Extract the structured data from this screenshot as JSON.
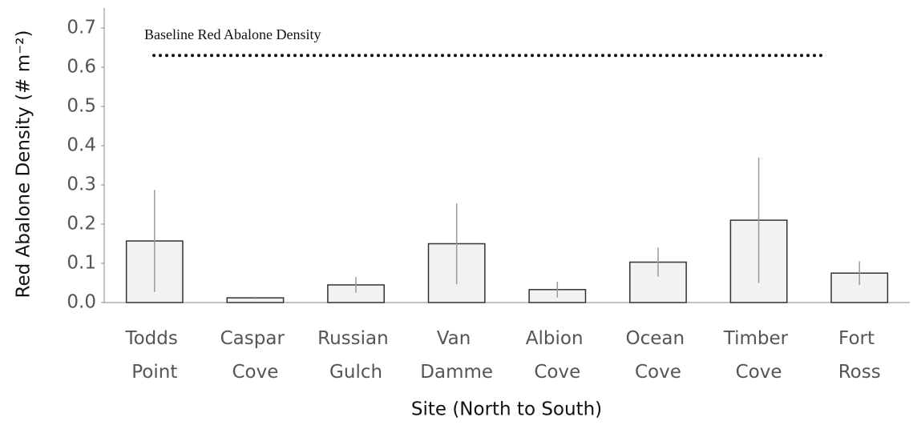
{
  "chart_data": {
    "type": "bar",
    "xlabel": "Site (North to South)",
    "ylabel": "Red Abalone Density (# m⁻²)",
    "categories": [
      "Todds Point",
      "Caspar Cove",
      "Russian Gulch",
      "Van Damme",
      "Albion Cove",
      "Ocean Cove",
      "Timber Cove",
      "Fort Ross"
    ],
    "values": [
      0.157,
      0.012,
      0.045,
      0.15,
      0.033,
      0.103,
      0.21,
      0.075
    ],
    "errors": [
      0.13,
      0.003,
      0.02,
      0.103,
      0.02,
      0.037,
      0.16,
      0.03
    ],
    "color": "#f2f2f2",
    "reference_line": {
      "label": "Baseline Red Abalone Density",
      "value": 0.63
    },
    "ylim": [
      0,
      0.7
    ],
    "yticks": [
      {
        "value": 0,
        "label": "0.0"
      },
      0.1,
      0.2,
      0.3,
      0.4,
      0.5,
      0.6,
      0.7
    ]
  }
}
